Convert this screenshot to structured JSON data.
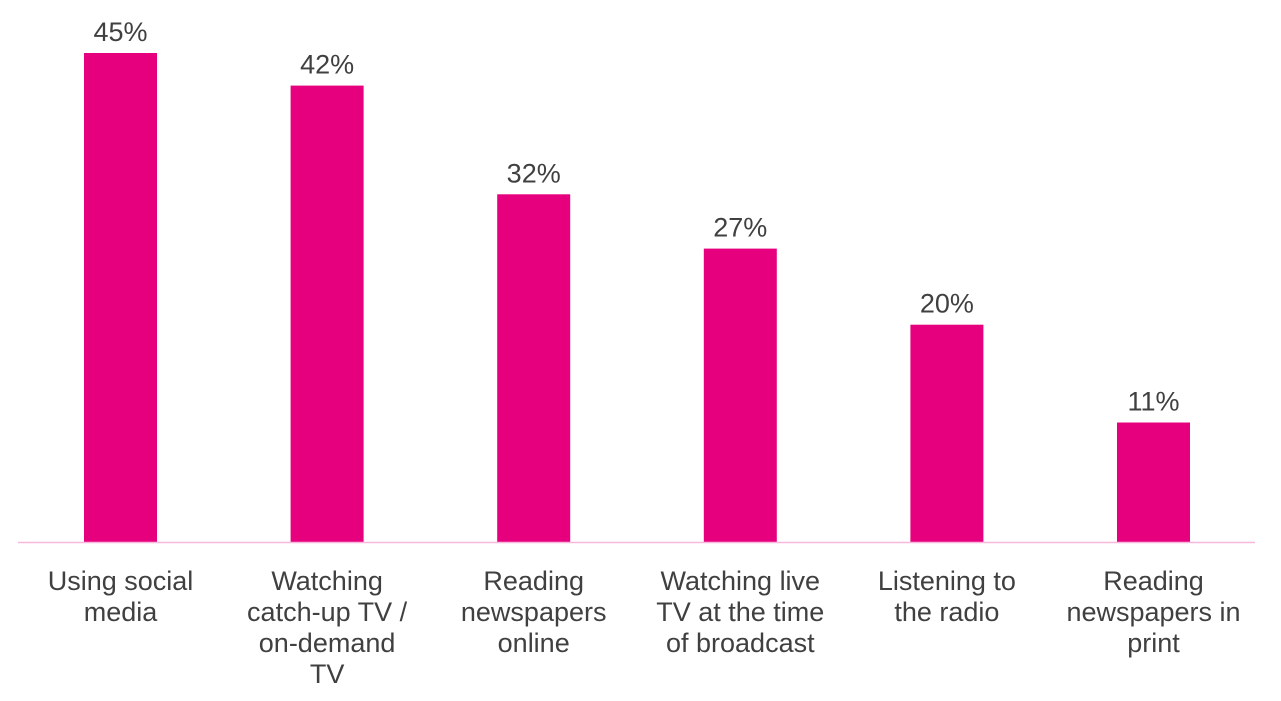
{
  "chart_data": {
    "type": "bar",
    "categories": [
      [
        "Using social",
        "media"
      ],
      [
        "Watching",
        "catch-up TV /",
        "on-demand",
        "TV"
      ],
      [
        "Reading",
        "newspapers",
        "online"
      ],
      [
        "Watching live",
        "TV at the time",
        "of broadcast"
      ],
      [
        "Listening to",
        "the radio"
      ],
      [
        "Reading",
        "newspapers in",
        "print"
      ]
    ],
    "values": [
      45,
      42,
      32,
      27,
      20,
      11
    ],
    "data_labels": [
      "45%",
      "42%",
      "32%",
      "27%",
      "20%",
      "11%"
    ],
    "title": "",
    "xlabel": "",
    "ylabel": "",
    "ylim": [
      0,
      45
    ],
    "grid": false,
    "legend": "none",
    "colors": {
      "bar": "#E6007E",
      "axis": "#F7B8DC",
      "text": "#404040"
    }
  }
}
